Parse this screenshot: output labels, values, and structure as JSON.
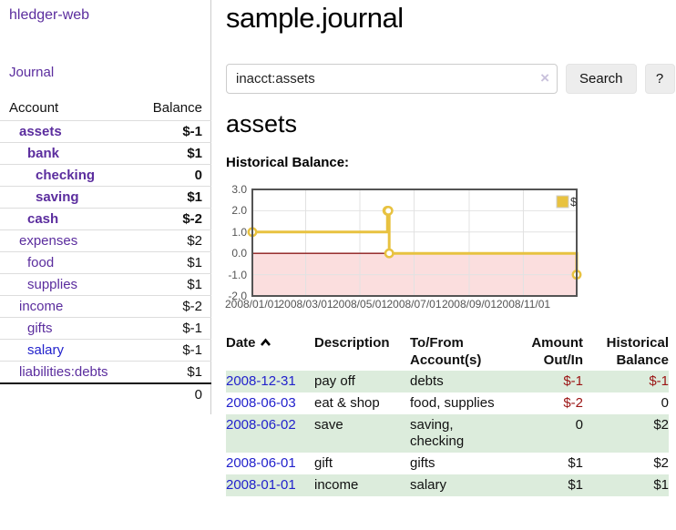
{
  "colors": {
    "accent_purple": "#5b2d9e",
    "link_blue": "#2222cc",
    "negative_strong": "#9b1414",
    "negative_soft": "#c47c7c",
    "chart_line_gold": "#e8c240",
    "chart_negative_fill": "#fbdede",
    "chart_zero_line": "#8b1a1a",
    "row_stripe_green": "#dcecdc"
  },
  "sidebar": {
    "app_title": "hledger-web",
    "journal_link": "Journal",
    "accounts_table": {
      "headers": [
        "Account",
        "Balance"
      ],
      "rows": [
        {
          "name": "assets",
          "balance": "$-1",
          "indent": 1,
          "bold": true,
          "balance_class": "neg-strong"
        },
        {
          "name": "bank",
          "balance": "$1",
          "indent": 2,
          "bold": true,
          "balance_class": ""
        },
        {
          "name": "checking",
          "balance": "0",
          "indent": 3,
          "bold": true,
          "balance_class": ""
        },
        {
          "name": "saving",
          "balance": "$1",
          "indent": 3,
          "bold": true,
          "balance_class": ""
        },
        {
          "name": "cash",
          "balance": "$-2",
          "indent": 2,
          "bold": true,
          "balance_class": "neg-strong"
        },
        {
          "name": "expenses",
          "balance": "$2",
          "indent": 1,
          "bold": false,
          "balance_class": ""
        },
        {
          "name": "food",
          "balance": "$1",
          "indent": 2,
          "bold": false,
          "balance_class": ""
        },
        {
          "name": "supplies",
          "balance": "$1",
          "indent": 2,
          "bold": false,
          "balance_class": ""
        },
        {
          "name": "income",
          "balance": "$-2",
          "indent": 1,
          "bold": false,
          "balance_class": "neg-soft"
        },
        {
          "name": "gifts",
          "balance": "$-1",
          "indent": 2,
          "bold": false,
          "balance_class": "neg-soft"
        },
        {
          "name": "salary",
          "balance": "$-1",
          "indent": 2,
          "bold": false,
          "balance_class": "neg-soft",
          "link_color": "blue"
        },
        {
          "name": "liabilities:debts",
          "balance": "$1",
          "indent": 1,
          "bold": false,
          "balance_class": ""
        }
      ],
      "total": "0"
    }
  },
  "main": {
    "title": "sample.journal",
    "search": {
      "value": "inacct:assets",
      "clear_icon": "×",
      "button_label": "Search",
      "help_label": "?"
    },
    "account_heading": "assets",
    "chart_heading": "Historical Balance:"
  },
  "chart_data": {
    "type": "line",
    "style": "steps",
    "title": "Historical Balance of assets",
    "series": [
      {
        "name": "$",
        "points": [
          [
            "2008-01-01",
            1
          ],
          [
            "2008-06-01",
            2
          ],
          [
            "2008-06-02",
            2
          ],
          [
            "2008-06-03",
            0
          ],
          [
            "2008-12-31",
            -1
          ]
        ]
      }
    ],
    "x_range": [
      "2008-01-01",
      "2008-12-31"
    ],
    "ylim": [
      -2,
      3
    ],
    "y_tick_values": [
      3,
      2,
      1,
      0,
      -1,
      -2
    ],
    "y_tick_labels": [
      "3.0",
      "2.0",
      "1.0",
      "0.0",
      "-1.0",
      "-2.0"
    ],
    "x_ticks": [
      "2008/01/01",
      "2008/03/01",
      "2008/05/01",
      "2008/07/01",
      "2008/09/01",
      "2008/11/01"
    ],
    "legend": {
      "label": "$",
      "position": "top-right"
    },
    "grid": true,
    "negative_region_shaded": true
  },
  "register_table": {
    "headers": [
      "Date",
      "Description",
      "To/From Account(s)",
      "Amount Out/In",
      "Historical Balance"
    ],
    "rows": [
      {
        "date": "2008-12-31",
        "description": "pay off",
        "accounts": "debts",
        "amount": "$-1",
        "balance": "$-1",
        "amount_neg": true,
        "balance_neg": true
      },
      {
        "date": "2008-06-03",
        "description": "eat & shop",
        "accounts": "food, supplies",
        "amount": "$-2",
        "balance": "0",
        "amount_neg": true,
        "balance_neg": false
      },
      {
        "date": "2008-06-02",
        "description": "save",
        "accounts": "saving, checking",
        "amount": "0",
        "balance": "$2",
        "amount_neg": false,
        "balance_neg": false
      },
      {
        "date": "2008-06-01",
        "description": "gift",
        "accounts": "gifts",
        "amount": "$1",
        "balance": "$2",
        "amount_neg": false,
        "balance_neg": false
      },
      {
        "date": "2008-01-01",
        "description": "income",
        "accounts": "salary",
        "amount": "$1",
        "balance": "$1",
        "amount_neg": false,
        "balance_neg": false
      }
    ]
  }
}
